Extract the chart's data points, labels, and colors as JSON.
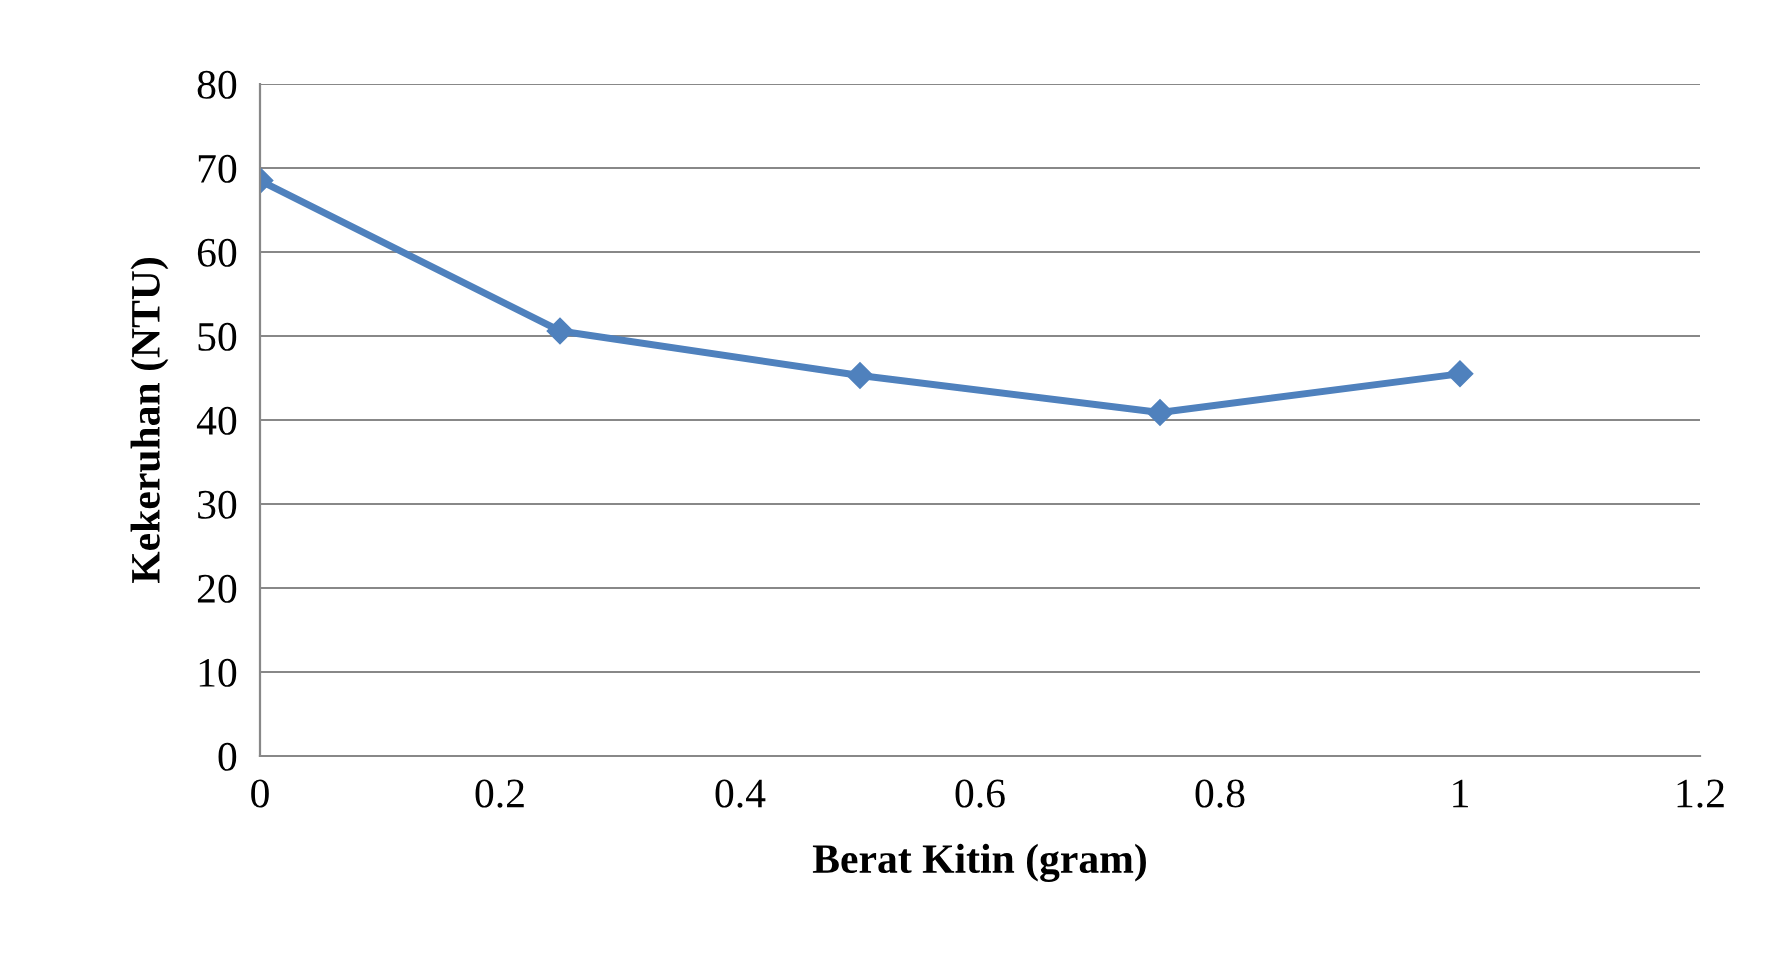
{
  "chart_data": {
    "type": "line",
    "xlabel": "Berat Kitin (gram)",
    "ylabel": "Kekeruhan (NTU)",
    "x": [
      0,
      0.25,
      0.5,
      0.75,
      1
    ],
    "series": [
      {
        "color": "#4f81bd",
        "values": [
          68.5,
          50.6,
          45.3,
          40.9,
          45.5
        ]
      }
    ],
    "xlim": [
      0,
      1.2
    ],
    "xticks": [
      0,
      0.2,
      0.4,
      0.6,
      0.8,
      1,
      1.2
    ],
    "ylim": [
      0,
      80
    ],
    "yticks": [
      0,
      10,
      20,
      30,
      40,
      50,
      60,
      70,
      80
    ],
    "grid": "y",
    "marker": "diamond",
    "line_style": "solid",
    "legend": false
  }
}
